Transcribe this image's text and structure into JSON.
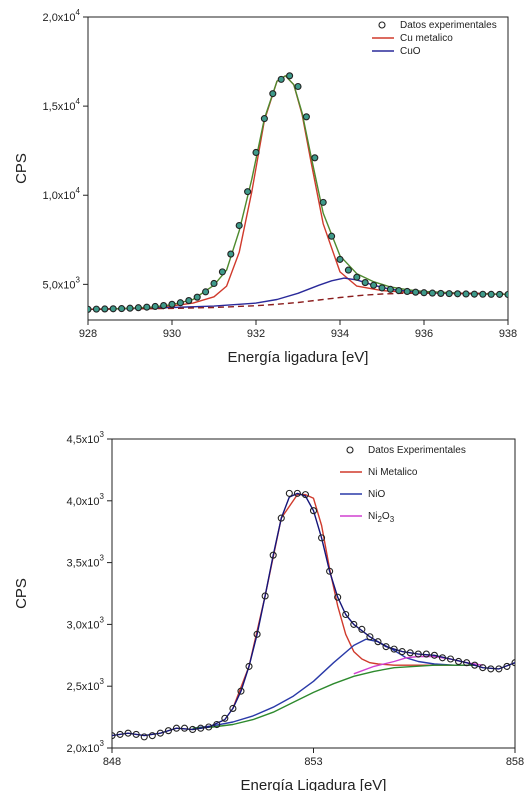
{
  "chart_data": [
    {
      "type": "line",
      "title": "",
      "xlabel": "Energía ligadura [eV]",
      "ylabel": "CPS",
      "xlim": [
        928,
        938
      ],
      "ylim": [
        3000,
        20000
      ],
      "xticks": [
        {
          "value": 928,
          "label": "928"
        },
        {
          "value": 930,
          "label": "930"
        },
        {
          "value": 932,
          "label": "932"
        },
        {
          "value": 934,
          "label": "934"
        },
        {
          "value": 936,
          "label": "936"
        },
        {
          "value": 938,
          "label": "938"
        }
      ],
      "yticks": [
        {
          "value": 5000,
          "mant": "5,0x10",
          "exp": "3"
        },
        {
          "value": 10000,
          "mant": "1,0x10",
          "exp": "4"
        },
        {
          "value": 15000,
          "mant": "1,5x10",
          "exp": "4"
        },
        {
          "value": 20000,
          "mant": "2,0x10",
          "exp": "4"
        }
      ],
      "legend": {
        "position": "top-right",
        "entries": [
          {
            "label": "Datos experimentales",
            "color": "#222222",
            "marker": "circle"
          },
          {
            "label": "Cu metalico",
            "color": "#d03a2c",
            "marker": "line"
          },
          {
            "label": "CuO",
            "color": "#2a2a9a",
            "marker": "line"
          }
        ]
      },
      "series": [
        {
          "kind": "points",
          "color": "#222222",
          "x": [
            928.0,
            928.2,
            928.4,
            928.6,
            928.8,
            929.0,
            929.2,
            929.4,
            929.6,
            929.8,
            930.0,
            930.2,
            930.4,
            930.6,
            930.8,
            931.0,
            931.2,
            931.4,
            931.6,
            931.8,
            932.0,
            932.2,
            932.4,
            932.6,
            932.8,
            933.0,
            933.2,
            933.4,
            933.6,
            933.8,
            934.0,
            934.2,
            934.4,
            934.6,
            934.8,
            935.0,
            935.2,
            935.4,
            935.6,
            935.8,
            936.0,
            936.2,
            936.4,
            936.6,
            936.8,
            937.0,
            937.2,
            937.4,
            937.6,
            937.8,
            938.0
          ],
          "y": [
            3600,
            3610,
            3620,
            3630,
            3640,
            3660,
            3690,
            3720,
            3760,
            3810,
            3880,
            3970,
            4090,
            4280,
            4580,
            5050,
            5700,
            6700,
            8300,
            10200,
            12400,
            14300,
            15700,
            16500,
            16700,
            16100,
            14400,
            12100,
            9600,
            7700,
            6400,
            5800,
            5400,
            5100,
            4950,
            4800,
            4720,
            4650,
            4600,
            4560,
            4530,
            4510,
            4490,
            4480,
            4470,
            4460,
            4450,
            4445,
            4440,
            4435,
            4430
          ]
        },
        {
          "kind": "line",
          "color": "#d03a2c",
          "x": [
            928.0,
            928.5,
            929.0,
            929.5,
            930.0,
            930.5,
            931.0,
            931.3,
            931.6,
            931.9,
            932.2,
            932.5,
            932.7,
            932.9,
            933.1,
            933.3,
            933.6,
            934.0,
            934.4,
            935.0,
            935.5,
            936.0,
            937.0,
            938.0
          ],
          "y": [
            3600,
            3620,
            3650,
            3700,
            3790,
            3950,
            4300,
            4900,
            6800,
            10200,
            14200,
            16400,
            16700,
            16200,
            14500,
            12000,
            8400,
            5700,
            4900,
            4650,
            4570,
            4520,
            4470,
            4440
          ]
        },
        {
          "kind": "line",
          "color": "#2a2a9a",
          "x": [
            928.0,
            929.0,
            930.0,
            931.0,
            932.0,
            932.5,
            933.0,
            933.5,
            933.8,
            934.1,
            934.4,
            934.8,
            935.2,
            935.6,
            936.0,
            936.5,
            937.0,
            938.0
          ],
          "y": [
            3600,
            3640,
            3700,
            3780,
            3950,
            4150,
            4500,
            4950,
            5200,
            5350,
            5250,
            4950,
            4720,
            4620,
            4560,
            4510,
            4480,
            4440
          ]
        },
        {
          "kind": "line",
          "color": "#4e8a2e",
          "x": [
            928.0,
            928.5,
            929.0,
            929.5,
            930.0,
            930.5,
            931.0,
            931.3,
            931.6,
            931.9,
            932.2,
            932.5,
            932.7,
            932.9,
            933.1,
            933.3,
            933.6,
            934.0,
            934.4,
            934.8,
            935.2,
            935.6,
            936.0,
            937.0,
            938.0
          ],
          "y": [
            3600,
            3620,
            3660,
            3720,
            3860,
            4150,
            4950,
            5800,
            8000,
            10900,
            14300,
            16400,
            16700,
            16200,
            14600,
            12300,
            9000,
            6600,
            5600,
            5150,
            4850,
            4700,
            4600,
            4490,
            4440
          ]
        },
        {
          "kind": "line",
          "dashed": true,
          "color": "#8b1d1d",
          "x": [
            928.0,
            929.0,
            930.0,
            931.0,
            932.0,
            932.5,
            933.0,
            933.5,
            934.0,
            934.5,
            935.0,
            935.5,
            936.0,
            937.0,
            938.0
          ],
          "y": [
            3600,
            3620,
            3650,
            3700,
            3800,
            3880,
            3980,
            4120,
            4260,
            4380,
            4460,
            4500,
            4510,
            4500,
            4480
          ]
        }
      ]
    },
    {
      "type": "line",
      "title": "",
      "xlabel": "Energía Ligadura [eV]",
      "ylabel": "CPS",
      "xlim": [
        848,
        858
      ],
      "ylim": [
        2000,
        4500
      ],
      "xticks": [
        {
          "value": 848,
          "label": "848"
        },
        {
          "value": 853,
          "label": "853"
        },
        {
          "value": 858,
          "label": "858"
        }
      ],
      "yticks": [
        {
          "value": 2000,
          "mant": "2,0x10",
          "exp": "3"
        },
        {
          "value": 2500,
          "mant": "2,5x10",
          "exp": "3"
        },
        {
          "value": 3000,
          "mant": "3,0x10",
          "exp": "3"
        },
        {
          "value": 3500,
          "mant": "3,5x10",
          "exp": "3"
        },
        {
          "value": 4000,
          "mant": "4,0x10",
          "exp": "3"
        },
        {
          "value": 4500,
          "mant": "4,5x10",
          "exp": "3"
        }
      ],
      "legend": {
        "position": "top-right",
        "entries": [
          {
            "label": "Datos Experimentales",
            "color": "#222222",
            "marker": "circle"
          },
          {
            "label": "Ni Metalico",
            "color": "#d03a2c",
            "marker": "line"
          },
          {
            "label": "NiO",
            "color": "#2a3aa8",
            "marker": "line"
          },
          {
            "label": "Ni",
            "sub": "2",
            "label2": "O",
            "sub2": "3",
            "color": "#d040d0",
            "marker": "line"
          }
        ]
      },
      "series": [
        {
          "kind": "points",
          "color": "#222222",
          "x": [
            848.0,
            848.2,
            848.4,
            848.6,
            848.8,
            849.0,
            849.2,
            849.4,
            849.6,
            849.8,
            850.0,
            850.2,
            850.4,
            850.6,
            850.8,
            851.0,
            851.2,
            851.4,
            851.6,
            851.8,
            852.0,
            852.2,
            852.4,
            852.6,
            852.8,
            853.0,
            853.2,
            853.4,
            853.6,
            853.8,
            854.0,
            854.2,
            854.4,
            854.6,
            854.8,
            855.0,
            855.2,
            855.4,
            855.6,
            855.8,
            856.0,
            856.2,
            856.4,
            856.6,
            856.8,
            857.0,
            857.2,
            857.4,
            857.6,
            857.8,
            858.0
          ],
          "y": [
            2100,
            2110,
            2120,
            2110,
            2090,
            2100,
            2120,
            2140,
            2160,
            2160,
            2150,
            2160,
            2170,
            2190,
            2240,
            2320,
            2460,
            2660,
            2920,
            3230,
            3560,
            3860,
            4060,
            4060,
            4050,
            3920,
            3700,
            3430,
            3220,
            3080,
            3000,
            2960,
            2900,
            2860,
            2820,
            2800,
            2780,
            2770,
            2760,
            2760,
            2750,
            2730,
            2720,
            2700,
            2690,
            2670,
            2650,
            2640,
            2640,
            2660,
            2690
          ]
        },
        {
          "kind": "line",
          "color": "#d03a2c",
          "x": [
            851.0,
            851.4,
            851.8,
            852.2,
            852.6,
            852.8,
            853.0,
            853.2,
            853.4,
            853.6,
            853.8,
            854.0,
            854.2,
            854.4,
            854.6,
            855.0,
            855.5,
            856.0,
            857.0
          ],
          "y": [
            2320,
            2660,
            3230,
            3860,
            4050,
            4050,
            4020,
            3800,
            3450,
            3150,
            2920,
            2780,
            2720,
            2690,
            2680,
            2670,
            2670,
            2670,
            2670
          ]
        },
        {
          "kind": "line",
          "color": "#2a3aa8",
          "x": [
            850.0,
            850.5,
            851.0,
            851.5,
            852.0,
            852.5,
            853.0,
            853.5,
            854.0,
            854.3,
            854.6,
            855.0,
            855.3,
            855.6,
            856.0,
            856.5,
            857.0
          ],
          "y": [
            2160,
            2180,
            2210,
            2260,
            2330,
            2420,
            2540,
            2690,
            2830,
            2880,
            2860,
            2790,
            2730,
            2700,
            2680,
            2670,
            2670
          ]
        },
        {
          "kind": "line",
          "color": "#d040d0",
          "x": [
            854.0,
            854.5,
            855.0,
            855.3,
            855.6,
            856.0,
            856.4,
            856.8,
            857.2
          ],
          "y": [
            2600,
            2660,
            2700,
            2730,
            2740,
            2740,
            2720,
            2690,
            2670
          ]
        },
        {
          "kind": "line",
          "color": "#2e8a2e",
          "x": [
            850.0,
            850.5,
            851.0,
            851.5,
            852.0,
            852.5,
            853.0,
            853.5,
            854.0,
            854.5,
            855.0,
            855.5,
            856.0,
            856.5,
            857.0
          ],
          "y": [
            2160,
            2170,
            2190,
            2230,
            2290,
            2370,
            2450,
            2520,
            2580,
            2620,
            2650,
            2660,
            2670,
            2670,
            2670
          ]
        },
        {
          "kind": "line",
          "color": "#15157a",
          "x": [
            848.0,
            848.4,
            848.8,
            849.2,
            849.6,
            850.0,
            850.4,
            850.8,
            851.0,
            851.2,
            851.4,
            851.6,
            851.8,
            852.0,
            852.2,
            852.4,
            852.6,
            852.8,
            853.0,
            853.2,
            853.4,
            853.6,
            853.8,
            854.0,
            854.4,
            854.8,
            855.2,
            855.6,
            856.0,
            856.4,
            856.8,
            857.2,
            857.6,
            858.0
          ],
          "y": [
            2100,
            2120,
            2100,
            2120,
            2160,
            2150,
            2170,
            2230,
            2320,
            2460,
            2660,
            2920,
            3230,
            3560,
            3860,
            4030,
            4060,
            4040,
            3920,
            3700,
            3430,
            3220,
            3080,
            3000,
            2900,
            2820,
            2780,
            2760,
            2750,
            2720,
            2690,
            2650,
            2640,
            2690
          ]
        }
      ]
    }
  ]
}
